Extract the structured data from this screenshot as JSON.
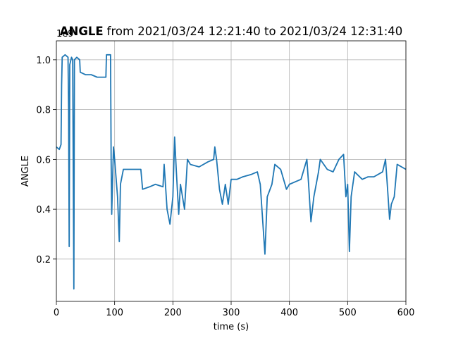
{
  "chart_data": {
    "type": "line",
    "title_bold": "ANGLE",
    "title": "from 2021/03/24 12:21:40 to 2021/03/24 12:31:40",
    "xlabel": "time (s)",
    "ylabel": "ANGLE",
    "y_offset_label": "1e9",
    "x": [
      0,
      5,
      8,
      9,
      10,
      15,
      20,
      21,
      22,
      23,
      26,
      28,
      30,
      31,
      35,
      40,
      41,
      50,
      60,
      70,
      85,
      86,
      93,
      94,
      95,
      98,
      100,
      105,
      108,
      110,
      115,
      130,
      145,
      148,
      160,
      170,
      183,
      185,
      190,
      195,
      200,
      203,
      206,
      210,
      213,
      220,
      225,
      230,
      245,
      260,
      270,
      272,
      275,
      280,
      285,
      290,
      295,
      300,
      310,
      320,
      335,
      345,
      350,
      358,
      362,
      370,
      375,
      385,
      395,
      400,
      410,
      420,
      430,
      433,
      437,
      442,
      450,
      453,
      465,
      475,
      485,
      493,
      497,
      500,
      503,
      506,
      512,
      525,
      535,
      545,
      560,
      565,
      568,
      572,
      575,
      580,
      585,
      600
    ],
    "values": [
      0.65,
      0.64,
      0.66,
      0.9,
      1.01,
      1.02,
      1.01,
      0.8,
      0.25,
      0.98,
      1.01,
      1.0,
      0.08,
      1.0,
      1.01,
      1.0,
      0.95,
      0.94,
      0.94,
      0.93,
      0.93,
      1.02,
      1.02,
      0.6,
      0.38,
      0.65,
      0.6,
      0.45,
      0.27,
      0.5,
      0.56,
      0.56,
      0.56,
      0.48,
      0.49,
      0.5,
      0.49,
      0.58,
      0.4,
      0.34,
      0.45,
      0.69,
      0.55,
      0.38,
      0.5,
      0.4,
      0.6,
      0.58,
      0.57,
      0.59,
      0.6,
      0.65,
      0.6,
      0.48,
      0.42,
      0.5,
      0.42,
      0.52,
      0.52,
      0.53,
      0.54,
      0.55,
      0.5,
      0.22,
      0.45,
      0.5,
      0.58,
      0.56,
      0.48,
      0.5,
      0.51,
      0.52,
      0.6,
      0.5,
      0.35,
      0.45,
      0.55,
      0.6,
      0.56,
      0.55,
      0.6,
      0.62,
      0.45,
      0.5,
      0.23,
      0.45,
      0.55,
      0.52,
      0.53,
      0.53,
      0.55,
      0.6,
      0.5,
      0.36,
      0.42,
      0.45,
      0.58,
      0.56
    ],
    "color": "#1f77b4",
    "xlim": [
      0,
      600
    ],
    "xticks": [
      0,
      100,
      200,
      300,
      400,
      500,
      600
    ],
    "ylim": [
      0.03,
      1.076
    ],
    "yticks": [
      0.2,
      0.4,
      0.6,
      0.8,
      {
        "value": 1,
        "label": "1.0"
      }
    ],
    "grid": true
  }
}
